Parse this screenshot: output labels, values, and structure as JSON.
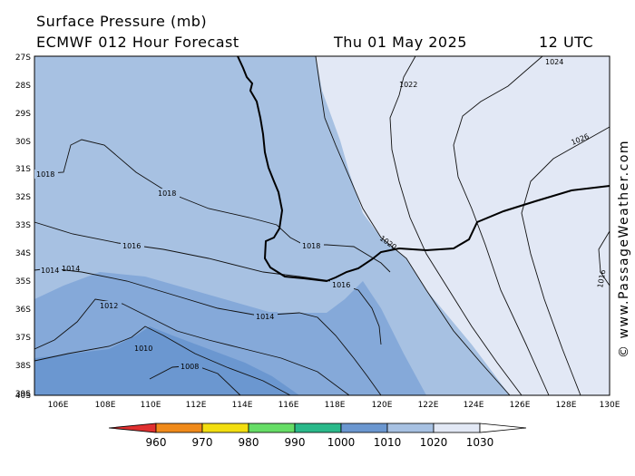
{
  "header": {
    "title": "Surface Pressure (mb)",
    "subtitle": "ECMWF 012 Hour Forecast",
    "date": "Thu 01 May 2025",
    "time": "12 UTC"
  },
  "map": {
    "lat_labels": [
      "27S",
      "28S",
      "29S",
      "30S",
      "31S",
      "32S",
      "33S",
      "34S",
      "35S",
      "36S",
      "37S",
      "38S",
      "39S",
      "40S"
    ],
    "lon_labels": [
      "106E",
      "108E",
      "110E",
      "112E",
      "114E",
      "116E",
      "118E",
      "120E",
      "122E",
      "124E",
      "126E",
      "128E",
      "130E"
    ],
    "isobar_labels": [
      "1024",
      "1022",
      "1026",
      "1018",
      "1018",
      "1016",
      "1014",
      "1014",
      "1018",
      "1020",
      "1016",
      "1012",
      "1014",
      "1010",
      "1008",
      "1016"
    ],
    "fill_colors": {
      "below_1010": "#6b97d0",
      "1010_1015": "#85a9d9",
      "1015_1020": "#a7c1e2",
      "above_1020": "#e2e8f5"
    }
  },
  "legend": {
    "labels": [
      "960",
      "970",
      "980",
      "990",
      "1000",
      "1010",
      "1020",
      "1030"
    ],
    "colors": [
      "#e03030",
      "#f08a1a",
      "#f2de10",
      "#66dd66",
      "#2ab98a",
      "#6b97d0",
      "#a7c1e2",
      "#e2e8f5"
    ]
  },
  "credit": "© www.PassageWeather.com"
}
